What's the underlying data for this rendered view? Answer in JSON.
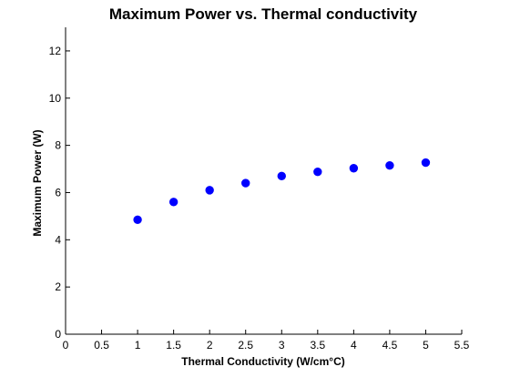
{
  "chart_data": {
    "type": "scatter",
    "title": "Maximum Power vs. Thermal conductivity",
    "xlabel": "Thermal Conductivity (W/cm°C)",
    "ylabel": "Maximum Power (W)",
    "xlim": [
      0,
      5.5
    ],
    "ylim": [
      0,
      13
    ],
    "xticks": [
      "0",
      "0.5",
      "1",
      "1.5",
      "2",
      "2.5",
      "3",
      "3.5",
      "4",
      "4.5",
      "5",
      "5.5"
    ],
    "yticks": [
      "0",
      "2",
      "4",
      "6",
      "8",
      "10",
      "12"
    ],
    "grid": false,
    "marker_color": "#0000ff",
    "series": [
      {
        "x": [
          1,
          1.5,
          2,
          2.5,
          3,
          3.5,
          4,
          4.5,
          5
        ],
        "y": [
          4.85,
          5.6,
          6.1,
          6.4,
          6.7,
          6.88,
          7.03,
          7.15,
          7.27
        ]
      }
    ]
  }
}
